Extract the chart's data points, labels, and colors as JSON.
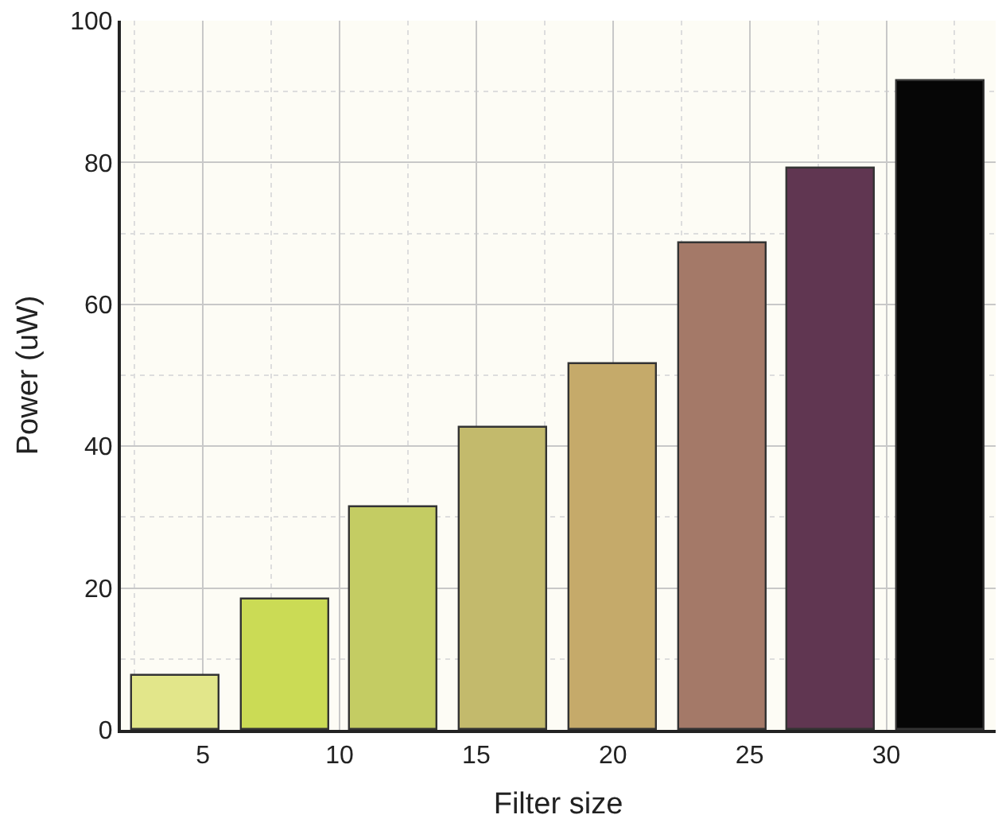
{
  "chart_data": {
    "type": "bar",
    "xlabel": "Filter size",
    "ylabel": "Power (uW)",
    "x": [
      4,
      8,
      12,
      16,
      20,
      24,
      28,
      32
    ],
    "values": [
      7.7,
      18.4,
      31.4,
      42.5,
      51.5,
      68.7,
      79.1,
      91.4
    ],
    "colors": [
      "#e2e68a",
      "#cbdb55",
      "#c4cc63",
      "#c3ba6c",
      "#c5aa6a",
      "#a47968",
      "#603651",
      "#060606"
    ],
    "xlim": [
      2,
      34
    ],
    "xticks": [
      5,
      10,
      15,
      20,
      25,
      30
    ],
    "ylim": [
      0,
      100
    ],
    "yticks": [
      0,
      20,
      40,
      60,
      80,
      100
    ],
    "grid": true
  }
}
